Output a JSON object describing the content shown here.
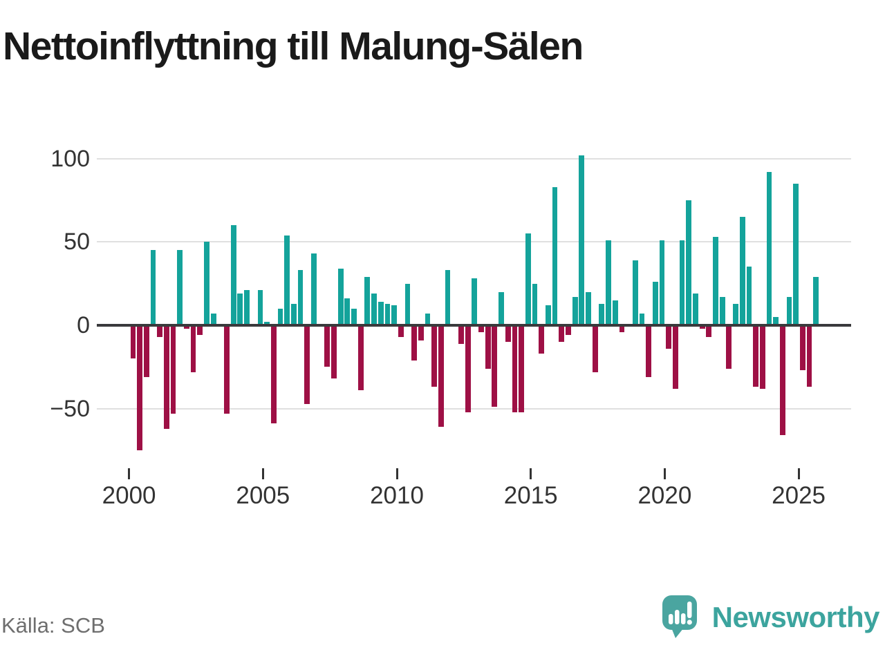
{
  "title": "Nettoinflyttning till Malung-Sälen",
  "source": "Källa: SCB",
  "logo": {
    "text": "Newsworthy",
    "icon": "newsworthy-speech-bubble-chart-icon"
  },
  "colors": {
    "positive": "#14a39b",
    "negative": "#9e1045",
    "grid": "#e0e0e0",
    "zero_line": "#3a3a3c",
    "axis_text": "#333333",
    "title_text": "#1a1a1a",
    "source_text": "#6e6e6e",
    "logo_teal": "#3ca49e"
  },
  "chart_data": {
    "type": "bar",
    "title": "Nettoinflyttning till Malung-Sälen",
    "xlabel": "",
    "ylabel": "",
    "ylim": [
      -80,
      110
    ],
    "grid": "horizontal",
    "legend": "none",
    "y_ticks": [
      100,
      50,
      0,
      -50
    ],
    "x_ticks": [
      2000,
      2005,
      2010,
      2015,
      2020,
      2025
    ],
    "x": [
      "2000-Q1",
      "2000-Q2",
      "2000-Q3",
      "2000-Q4",
      "2001-Q1",
      "2001-Q2",
      "2001-Q3",
      "2001-Q4",
      "2002-Q1",
      "2002-Q2",
      "2002-Q3",
      "2002-Q4",
      "2003-Q1",
      "2003-Q2",
      "2003-Q3",
      "2003-Q4",
      "2004-Q1",
      "2004-Q2",
      "2004-Q3",
      "2004-Q4",
      "2005-Q1",
      "2005-Q2",
      "2005-Q3",
      "2005-Q4",
      "2006-Q1",
      "2006-Q2",
      "2006-Q3",
      "2006-Q4",
      "2007-Q1",
      "2007-Q2",
      "2007-Q3",
      "2007-Q4",
      "2008-Q1",
      "2008-Q2",
      "2008-Q3",
      "2008-Q4",
      "2009-Q1",
      "2009-Q2",
      "2009-Q3",
      "2009-Q4",
      "2010-Q1",
      "2010-Q2",
      "2010-Q3",
      "2010-Q4",
      "2011-Q1",
      "2011-Q2",
      "2011-Q3",
      "2011-Q4",
      "2012-Q1",
      "2012-Q2",
      "2012-Q3",
      "2012-Q4",
      "2013-Q1",
      "2013-Q2",
      "2013-Q3",
      "2013-Q4",
      "2014-Q1",
      "2014-Q2",
      "2014-Q3",
      "2014-Q4",
      "2015-Q1",
      "2015-Q2",
      "2015-Q3",
      "2015-Q4",
      "2016-Q1",
      "2016-Q2",
      "2016-Q3",
      "2016-Q4",
      "2017-Q1",
      "2017-Q2",
      "2017-Q3",
      "2017-Q4",
      "2018-Q1",
      "2018-Q2",
      "2018-Q3",
      "2018-Q4",
      "2019-Q1",
      "2019-Q2",
      "2019-Q3",
      "2019-Q4",
      "2020-Q1",
      "2020-Q2",
      "2020-Q3",
      "2020-Q4",
      "2021-Q1",
      "2021-Q2",
      "2021-Q3",
      "2021-Q4",
      "2022-Q1",
      "2022-Q2",
      "2022-Q3",
      "2022-Q4",
      "2023-Q1",
      "2023-Q2",
      "2023-Q3",
      "2023-Q4",
      "2024-Q1",
      "2024-Q2",
      "2024-Q3",
      "2024-Q4",
      "2025-Q1",
      "2025-Q2",
      "2025-Q3"
    ],
    "values": [
      -20,
      -75,
      -31,
      45,
      -7,
      -62,
      -53,
      45,
      -2,
      -28,
      -6,
      50,
      7,
      0,
      -53,
      60,
      19,
      21,
      0,
      21,
      2,
      -59,
      10,
      54,
      13,
      33,
      -47,
      43,
      0,
      -25,
      -32,
      34,
      16,
      10,
      -39,
      29,
      19,
      14,
      13,
      12,
      -7,
      25,
      -21,
      -9,
      7,
      -37,
      -61,
      33,
      0,
      -11,
      -52,
      28,
      -4,
      -26,
      -49,
      20,
      -10,
      -52,
      -52,
      55,
      25,
      -17,
      12,
      83,
      -10,
      -6,
      17,
      102,
      20,
      -28,
      13,
      51,
      15,
      -4,
      0,
      39,
      7,
      -31,
      26,
      51,
      -14,
      -38,
      51,
      75,
      19,
      -2,
      -7,
      53,
      17,
      -26,
      13,
      65,
      35,
      -37,
      -38,
      92,
      5,
      -66,
      17,
      85,
      -27,
      -37,
      29
    ]
  }
}
